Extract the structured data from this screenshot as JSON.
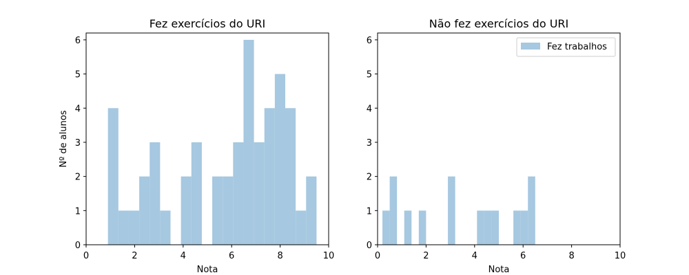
{
  "figure": {
    "background": "#ffffff"
  },
  "chart_data": [
    {
      "type": "bar",
      "title": "Fez exercícios do URI",
      "xlabel": "Nota",
      "ylabel": "Nº de alunos",
      "xlim": [
        0,
        10
      ],
      "ylim": [
        0,
        6.2
      ],
      "xticks": [
        0,
        2,
        4,
        6,
        8,
        10
      ],
      "yticks": [
        0,
        1,
        2,
        3,
        4,
        5,
        6
      ],
      "bar_color": "#a6c8e0",
      "legend": null,
      "bins": [
        {
          "x0": 0.9,
          "x1": 1.33,
          "count": 4
        },
        {
          "x0": 1.33,
          "x1": 1.76,
          "count": 1
        },
        {
          "x0": 1.76,
          "x1": 2.19,
          "count": 1
        },
        {
          "x0": 2.19,
          "x1": 2.62,
          "count": 2
        },
        {
          "x0": 2.62,
          "x1": 3.05,
          "count": 3
        },
        {
          "x0": 3.05,
          "x1": 3.48,
          "count": 1
        },
        {
          "x0": 3.91,
          "x1": 4.34,
          "count": 2
        },
        {
          "x0": 4.34,
          "x1": 4.77,
          "count": 3
        },
        {
          "x0": 5.2,
          "x1": 5.63,
          "count": 2
        },
        {
          "x0": 5.63,
          "x1": 6.06,
          "count": 2
        },
        {
          "x0": 6.06,
          "x1": 6.49,
          "count": 3
        },
        {
          "x0": 6.49,
          "x1": 6.92,
          "count": 6
        },
        {
          "x0": 6.92,
          "x1": 7.35,
          "count": 3
        },
        {
          "x0": 7.35,
          "x1": 7.78,
          "count": 4
        },
        {
          "x0": 7.78,
          "x1": 8.21,
          "count": 5
        },
        {
          "x0": 8.21,
          "x1": 8.64,
          "count": 4
        },
        {
          "x0": 8.64,
          "x1": 9.07,
          "count": 1
        },
        {
          "x0": 9.07,
          "x1": 9.5,
          "count": 2
        }
      ]
    },
    {
      "type": "bar",
      "title": "Não fez exercícios do URI",
      "xlabel": "Nota",
      "ylabel": "",
      "xlim": [
        0,
        10
      ],
      "ylim": [
        0,
        6.2
      ],
      "xticks": [
        0,
        2,
        4,
        6,
        8,
        10
      ],
      "yticks": [
        0,
        1,
        2,
        3,
        4,
        5,
        6
      ],
      "bar_color": "#a6c8e0",
      "legend": {
        "label": "Fez trabalhos",
        "placement": "top-right"
      },
      "bins": [
        {
          "x0": 0.2,
          "x1": 0.5,
          "count": 1
        },
        {
          "x0": 0.5,
          "x1": 0.8,
          "count": 2
        },
        {
          "x0": 1.1,
          "x1": 1.4,
          "count": 1
        },
        {
          "x0": 1.7,
          "x1": 2.0,
          "count": 1
        },
        {
          "x0": 2.9,
          "x1": 3.2,
          "count": 2
        },
        {
          "x0": 4.1,
          "x1": 4.4,
          "count": 1
        },
        {
          "x0": 4.4,
          "x1": 4.7,
          "count": 1
        },
        {
          "x0": 4.7,
          "x1": 5.0,
          "count": 1
        },
        {
          "x0": 5.6,
          "x1": 5.9,
          "count": 1
        },
        {
          "x0": 5.9,
          "x1": 6.2,
          "count": 1
        },
        {
          "x0": 6.2,
          "x1": 6.5,
          "count": 2
        }
      ]
    }
  ]
}
